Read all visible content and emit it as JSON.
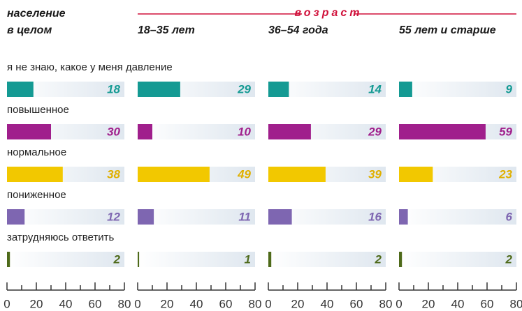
{
  "chart_data": {
    "type": "bar",
    "group_label": "возраст",
    "categories": [
      "я не знаю, какое у меня давление",
      "повышенное",
      "нормальное",
      "пониженное",
      "затрудняюсь ответить"
    ],
    "colors": [
      "#149a93",
      "#a01f8c",
      "#f2c800",
      "#7e66b1",
      "#4e6a1a"
    ],
    "label_colors": [
      "#149a93",
      "#a01f8c",
      "#e0b000",
      "#7e66b1",
      "#4e6a1a"
    ],
    "panels": [
      {
        "title": [
          "население",
          "в целом"
        ],
        "values": [
          18,
          30,
          38,
          12,
          2
        ]
      },
      {
        "title": [
          "18–35 лет"
        ],
        "values": [
          29,
          10,
          49,
          11,
          1
        ]
      },
      {
        "title": [
          "36–54 года"
        ],
        "values": [
          14,
          29,
          39,
          16,
          2
        ]
      },
      {
        "title": [
          "55 лет и старше"
        ],
        "values": [
          9,
          59,
          23,
          6,
          2
        ]
      }
    ],
    "xlim": [
      0,
      80
    ],
    "xticks": [
      0,
      20,
      40,
      60,
      80
    ],
    "xminor": [
      10,
      30,
      50,
      70
    ]
  }
}
